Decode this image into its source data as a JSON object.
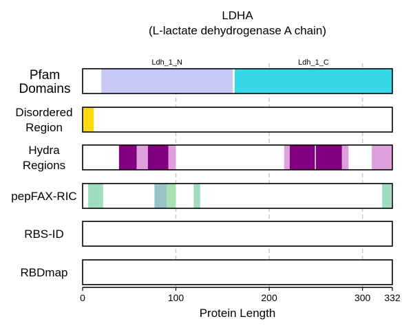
{
  "chart_data": {
    "type": "bar",
    "title": "LDHA",
    "subtitle": "(L-lactate dehydrogenase A chain)",
    "xlabel": "Protein Length",
    "xlim": [
      0,
      332
    ],
    "xticks": [
      0,
      100,
      200,
      300,
      332
    ],
    "xtick_labels": [
      "0",
      "100",
      "200",
      "300",
      "332"
    ],
    "gridlines": [
      100,
      200,
      300
    ],
    "tracks": [
      {
        "label": [
          "Pfam",
          "Domains"
        ],
        "label_size": "large",
        "segments": [
          {
            "start": 20,
            "end": 161,
            "color": "#c8c8f8",
            "label": "Ldh_1_N"
          },
          {
            "start": 163,
            "end": 332,
            "color": "#36d8e8",
            "label": "Ldh_1_C"
          }
        ]
      },
      {
        "label": [
          "Disordered",
          "Region"
        ],
        "label_size": "normal",
        "segments": [
          {
            "start": 0,
            "end": 12,
            "color": "#ffd90f"
          }
        ]
      },
      {
        "label": [
          "Hydra",
          "Regions"
        ],
        "label_size": "normal",
        "segments": [
          {
            "start": 39,
            "end": 58,
            "color": "#800080"
          },
          {
            "start": 58,
            "end": 70,
            "color": "#dda0dd"
          },
          {
            "start": 70,
            "end": 92,
            "color": "#800080"
          },
          {
            "start": 92,
            "end": 100,
            "color": "#dda0dd"
          },
          {
            "start": 216,
            "end": 222,
            "color": "#dda0dd"
          },
          {
            "start": 222,
            "end": 249,
            "color": "#800080"
          },
          {
            "start": 250,
            "end": 278,
            "color": "#800080"
          },
          {
            "start": 278,
            "end": 285,
            "color": "#dda0dd"
          },
          {
            "start": 310,
            "end": 332,
            "color": "#dda0dd"
          }
        ]
      },
      {
        "label": [
          "pepFAX-RIC"
        ],
        "label_size": "normal",
        "segments": [
          {
            "start": 6,
            "end": 22,
            "color": "#a0dcc0"
          },
          {
            "start": 77,
            "end": 90,
            "color": "#98c4c8"
          },
          {
            "start": 90,
            "end": 100,
            "color": "#a8e0b0"
          },
          {
            "start": 119,
            "end": 126,
            "color": "#a0dcc0"
          },
          {
            "start": 321,
            "end": 331,
            "color": "#a0dcc0"
          }
        ]
      },
      {
        "label": [
          "RBS-ID"
        ],
        "label_size": "normal",
        "segments": []
      },
      {
        "label": [
          "RBDmap"
        ],
        "label_size": "normal",
        "segments": []
      }
    ]
  }
}
